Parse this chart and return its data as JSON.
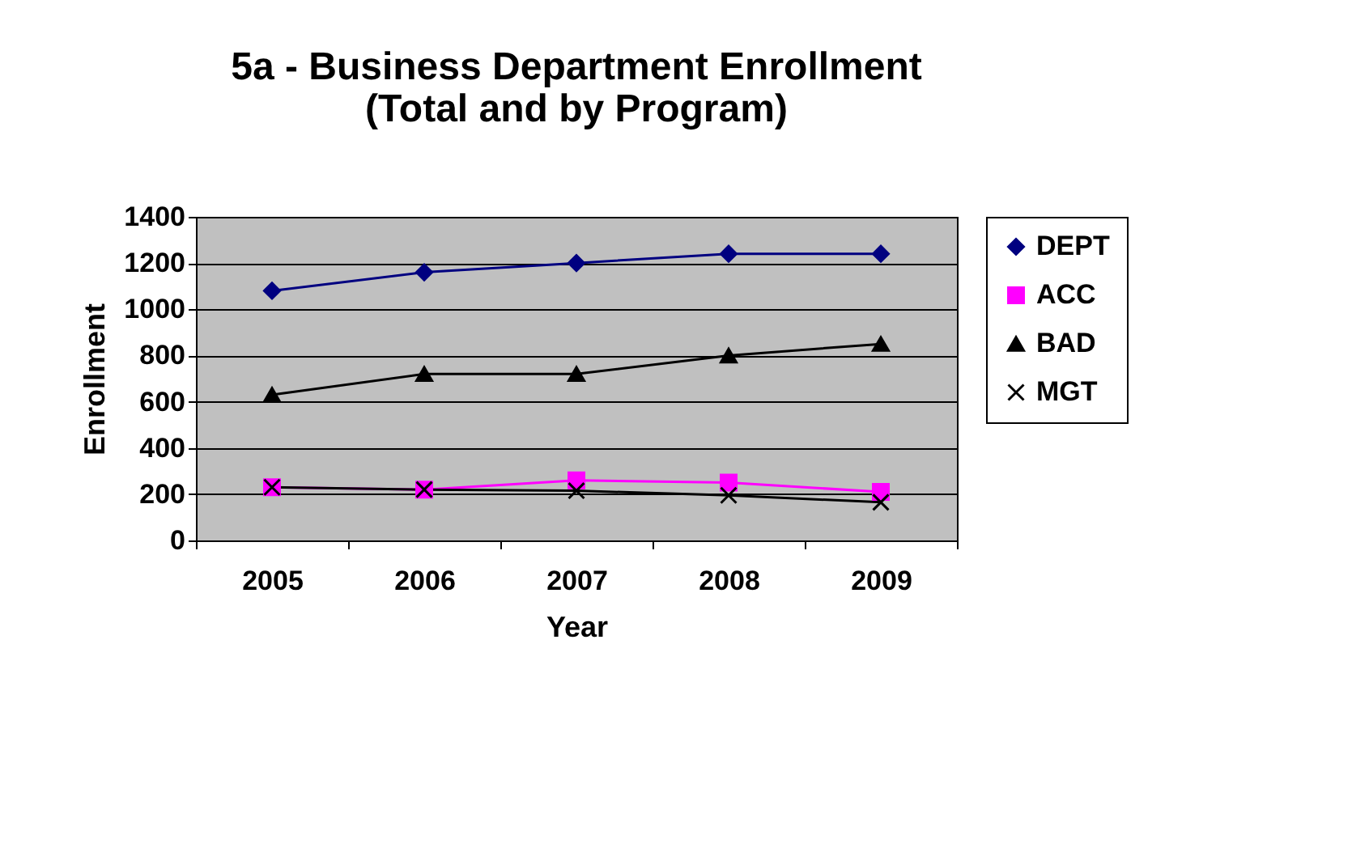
{
  "chart_data": {
    "type": "line",
    "title": [
      "5a - Business Department Enrollment",
      "(Total and by Program)"
    ],
    "xlabel": "Year",
    "ylabel": "Enrollment",
    "categories": [
      "2005",
      "2006",
      "2007",
      "2008",
      "2009"
    ],
    "series": [
      {
        "name": "DEPT",
        "color": "#000080",
        "marker": "diamond",
        "values": [
          1080,
          1160,
          1200,
          1240,
          1240
        ]
      },
      {
        "name": "ACC",
        "color": "#ff00ff",
        "marker": "square",
        "values": [
          230,
          220,
          260,
          250,
          210
        ]
      },
      {
        "name": "BAD",
        "color": "#000000",
        "marker": "triangle",
        "values": [
          630,
          720,
          720,
          800,
          850
        ]
      },
      {
        "name": "MGT",
        "color": "#000000",
        "marker": "cross",
        "values": [
          230,
          220,
          215,
          195,
          165
        ]
      }
    ],
    "ylim": [
      0,
      1400
    ],
    "yticks": [
      0,
      200,
      400,
      600,
      800,
      1000,
      1200,
      1400
    ],
    "grid": "y",
    "legend": "right"
  }
}
